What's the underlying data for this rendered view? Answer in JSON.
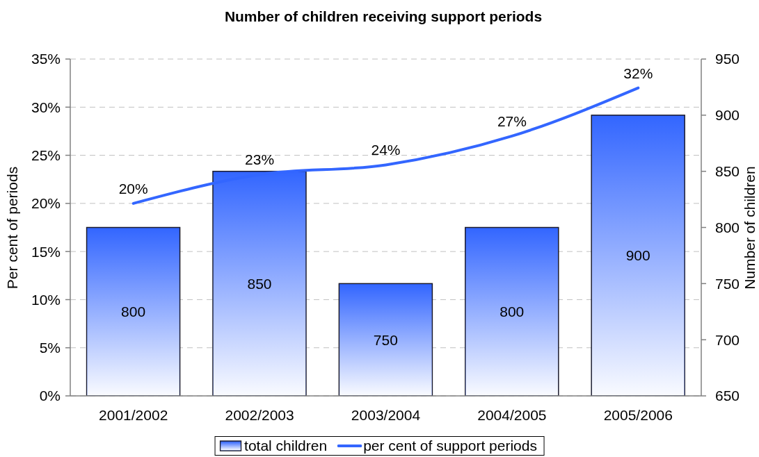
{
  "chart_data": {
    "type": "bar",
    "title": "Number of children receiving support periods",
    "ylabel": "Per cent of periods",
    "y2label": "Number of children",
    "categories": [
      "2001/2002",
      "2002/2003",
      "2003/2004",
      "2004/2005",
      "2005/2006"
    ],
    "series": [
      {
        "name": "total children",
        "axis": "y2",
        "color": "#3366ff",
        "values": [
          800,
          850,
          750,
          800,
          900
        ],
        "value_labels": [
          "800",
          "850",
          "750",
          "800",
          "900"
        ]
      },
      {
        "name": "per cent of support periods",
        "type": "line",
        "axis": "y",
        "color": "#3366ff",
        "values": [
          20,
          23,
          24,
          27,
          32
        ],
        "value_labels": [
          "20%",
          "23%",
          "24%",
          "27%",
          "32%"
        ]
      }
    ],
    "ylim": [
      0,
      35
    ],
    "yticks": [
      {
        "value": 0,
        "label": "0%"
      },
      {
        "value": 5,
        "label": "5%"
      },
      {
        "value": 10,
        "label": "10%"
      },
      {
        "value": 15,
        "label": "15%"
      },
      {
        "value": 20,
        "label": "20%"
      },
      {
        "value": 25,
        "label": "25%"
      },
      {
        "value": 30,
        "label": "30%"
      },
      {
        "value": 35,
        "label": "35%"
      }
    ],
    "y2lim": [
      650,
      950
    ],
    "y2ticks": [
      650,
      700,
      750,
      800,
      850,
      900,
      950
    ],
    "grid": "y",
    "legend": "bottom",
    "marker": "none"
  }
}
